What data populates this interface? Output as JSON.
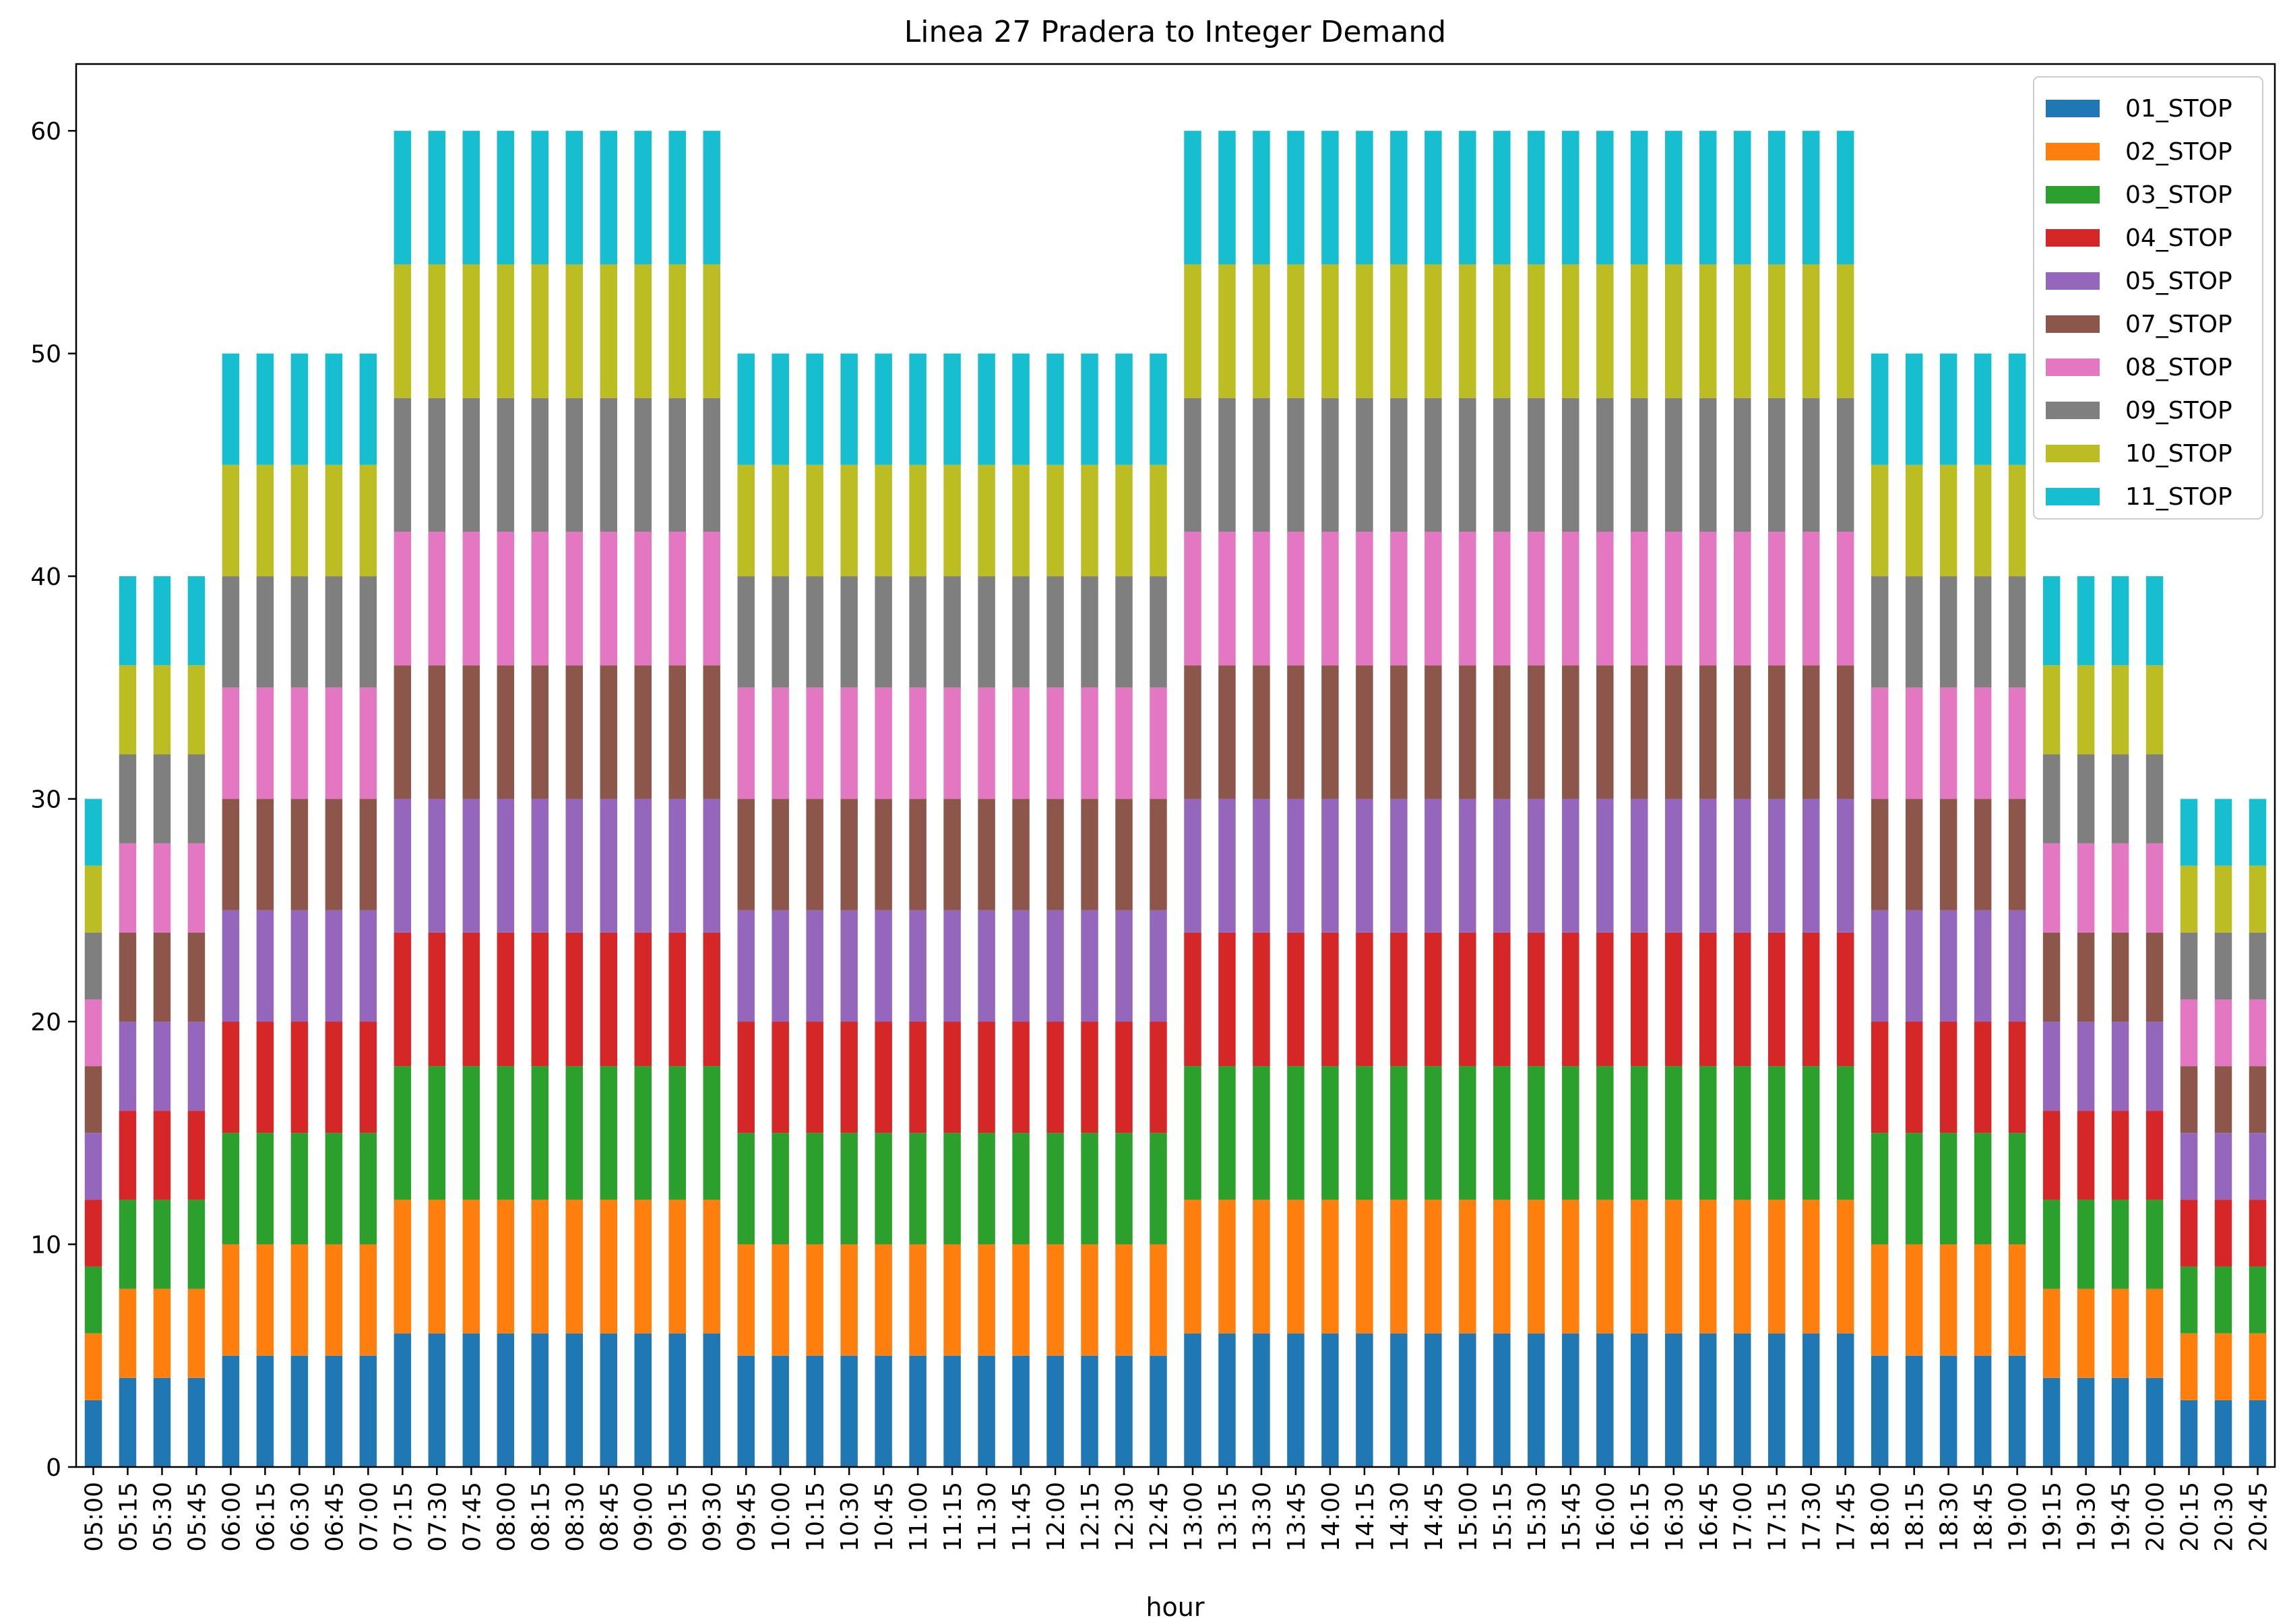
{
  "chart_data": {
    "type": "bar",
    "stacked": true,
    "title": "Linea 27 Pradera to Integer Demand",
    "xlabel": "hour",
    "ylabel": "",
    "ylim": [
      0,
      63
    ],
    "yticks": [
      0,
      10,
      20,
      30,
      40,
      50,
      60
    ],
    "grid": false,
    "legend_position": "top-right",
    "categories": [
      "05:00",
      "05:15",
      "05:30",
      "05:45",
      "06:00",
      "06:15",
      "06:30",
      "06:45",
      "07:00",
      "07:15",
      "07:30",
      "07:45",
      "08:00",
      "08:15",
      "08:30",
      "08:45",
      "09:00",
      "09:15",
      "09:30",
      "09:45",
      "10:00",
      "10:15",
      "10:30",
      "10:45",
      "11:00",
      "11:15",
      "11:30",
      "11:45",
      "12:00",
      "12:15",
      "12:30",
      "12:45",
      "13:00",
      "13:15",
      "13:30",
      "13:45",
      "14:00",
      "14:15",
      "14:30",
      "14:45",
      "15:00",
      "15:15",
      "15:30",
      "15:45",
      "16:00",
      "16:15",
      "16:30",
      "16:45",
      "17:00",
      "17:15",
      "17:30",
      "17:45",
      "18:00",
      "18:15",
      "18:30",
      "18:45",
      "19:00",
      "19:15",
      "19:30",
      "19:45",
      "20:00",
      "20:15",
      "20:30",
      "20:45"
    ],
    "series": [
      {
        "name": "01_STOP",
        "color": "#1f77b4",
        "values": [
          3,
          4,
          4,
          4,
          5,
          5,
          5,
          5,
          5,
          6,
          6,
          6,
          6,
          6,
          6,
          6,
          6,
          6,
          6,
          5,
          5,
          5,
          5,
          5,
          5,
          5,
          5,
          5,
          5,
          5,
          5,
          5,
          6,
          6,
          6,
          6,
          6,
          6,
          6,
          6,
          6,
          6,
          6,
          6,
          6,
          6,
          6,
          6,
          6,
          6,
          6,
          6,
          5,
          5,
          5,
          5,
          5,
          4,
          4,
          4,
          4,
          3,
          3,
          3
        ]
      },
      {
        "name": "02_STOP",
        "color": "#ff7f0e",
        "values": [
          3,
          4,
          4,
          4,
          5,
          5,
          5,
          5,
          5,
          6,
          6,
          6,
          6,
          6,
          6,
          6,
          6,
          6,
          6,
          5,
          5,
          5,
          5,
          5,
          5,
          5,
          5,
          5,
          5,
          5,
          5,
          5,
          6,
          6,
          6,
          6,
          6,
          6,
          6,
          6,
          6,
          6,
          6,
          6,
          6,
          6,
          6,
          6,
          6,
          6,
          6,
          6,
          5,
          5,
          5,
          5,
          5,
          4,
          4,
          4,
          4,
          3,
          3,
          3
        ]
      },
      {
        "name": "03_STOP",
        "color": "#2ca02c",
        "values": [
          3,
          4,
          4,
          4,
          5,
          5,
          5,
          5,
          5,
          6,
          6,
          6,
          6,
          6,
          6,
          6,
          6,
          6,
          6,
          5,
          5,
          5,
          5,
          5,
          5,
          5,
          5,
          5,
          5,
          5,
          5,
          5,
          6,
          6,
          6,
          6,
          6,
          6,
          6,
          6,
          6,
          6,
          6,
          6,
          6,
          6,
          6,
          6,
          6,
          6,
          6,
          6,
          5,
          5,
          5,
          5,
          5,
          4,
          4,
          4,
          4,
          3,
          3,
          3
        ]
      },
      {
        "name": "04_STOP",
        "color": "#d62728",
        "values": [
          3,
          4,
          4,
          4,
          5,
          5,
          5,
          5,
          5,
          6,
          6,
          6,
          6,
          6,
          6,
          6,
          6,
          6,
          6,
          5,
          5,
          5,
          5,
          5,
          5,
          5,
          5,
          5,
          5,
          5,
          5,
          5,
          6,
          6,
          6,
          6,
          6,
          6,
          6,
          6,
          6,
          6,
          6,
          6,
          6,
          6,
          6,
          6,
          6,
          6,
          6,
          6,
          5,
          5,
          5,
          5,
          5,
          4,
          4,
          4,
          4,
          3,
          3,
          3
        ]
      },
      {
        "name": "05_STOP",
        "color": "#9467bd",
        "values": [
          3,
          4,
          4,
          4,
          5,
          5,
          5,
          5,
          5,
          6,
          6,
          6,
          6,
          6,
          6,
          6,
          6,
          6,
          6,
          5,
          5,
          5,
          5,
          5,
          5,
          5,
          5,
          5,
          5,
          5,
          5,
          5,
          6,
          6,
          6,
          6,
          6,
          6,
          6,
          6,
          6,
          6,
          6,
          6,
          6,
          6,
          6,
          6,
          6,
          6,
          6,
          6,
          5,
          5,
          5,
          5,
          5,
          4,
          4,
          4,
          4,
          3,
          3,
          3
        ]
      },
      {
        "name": "07_STOP",
        "color": "#8c564b",
        "values": [
          3,
          4,
          4,
          4,
          5,
          5,
          5,
          5,
          5,
          6,
          6,
          6,
          6,
          6,
          6,
          6,
          6,
          6,
          6,
          5,
          5,
          5,
          5,
          5,
          5,
          5,
          5,
          5,
          5,
          5,
          5,
          5,
          6,
          6,
          6,
          6,
          6,
          6,
          6,
          6,
          6,
          6,
          6,
          6,
          6,
          6,
          6,
          6,
          6,
          6,
          6,
          6,
          5,
          5,
          5,
          5,
          5,
          4,
          4,
          4,
          4,
          3,
          3,
          3
        ]
      },
      {
        "name": "08_STOP",
        "color": "#e377c2",
        "values": [
          3,
          4,
          4,
          4,
          5,
          5,
          5,
          5,
          5,
          6,
          6,
          6,
          6,
          6,
          6,
          6,
          6,
          6,
          6,
          5,
          5,
          5,
          5,
          5,
          5,
          5,
          5,
          5,
          5,
          5,
          5,
          5,
          6,
          6,
          6,
          6,
          6,
          6,
          6,
          6,
          6,
          6,
          6,
          6,
          6,
          6,
          6,
          6,
          6,
          6,
          6,
          6,
          5,
          5,
          5,
          5,
          5,
          4,
          4,
          4,
          4,
          3,
          3,
          3
        ]
      },
      {
        "name": "09_STOP",
        "color": "#7f7f7f",
        "values": [
          3,
          4,
          4,
          4,
          5,
          5,
          5,
          5,
          5,
          6,
          6,
          6,
          6,
          6,
          6,
          6,
          6,
          6,
          6,
          5,
          5,
          5,
          5,
          5,
          5,
          5,
          5,
          5,
          5,
          5,
          5,
          5,
          6,
          6,
          6,
          6,
          6,
          6,
          6,
          6,
          6,
          6,
          6,
          6,
          6,
          6,
          6,
          6,
          6,
          6,
          6,
          6,
          5,
          5,
          5,
          5,
          5,
          4,
          4,
          4,
          4,
          3,
          3,
          3
        ]
      },
      {
        "name": "10_STOP",
        "color": "#bcbd22",
        "values": [
          3,
          4,
          4,
          4,
          5,
          5,
          5,
          5,
          5,
          6,
          6,
          6,
          6,
          6,
          6,
          6,
          6,
          6,
          6,
          5,
          5,
          5,
          5,
          5,
          5,
          5,
          5,
          5,
          5,
          5,
          5,
          5,
          6,
          6,
          6,
          6,
          6,
          6,
          6,
          6,
          6,
          6,
          6,
          6,
          6,
          6,
          6,
          6,
          6,
          6,
          6,
          6,
          5,
          5,
          5,
          5,
          5,
          4,
          4,
          4,
          4,
          3,
          3,
          3
        ]
      },
      {
        "name": "11_STOP",
        "color": "#17becf",
        "values": [
          3,
          4,
          4,
          4,
          5,
          5,
          5,
          5,
          5,
          6,
          6,
          6,
          6,
          6,
          6,
          6,
          6,
          6,
          6,
          5,
          5,
          5,
          5,
          5,
          5,
          5,
          5,
          5,
          5,
          5,
          5,
          5,
          6,
          6,
          6,
          6,
          6,
          6,
          6,
          6,
          6,
          6,
          6,
          6,
          6,
          6,
          6,
          6,
          6,
          6,
          6,
          6,
          5,
          5,
          5,
          5,
          5,
          4,
          4,
          4,
          4,
          3,
          3,
          3
        ]
      }
    ]
  }
}
